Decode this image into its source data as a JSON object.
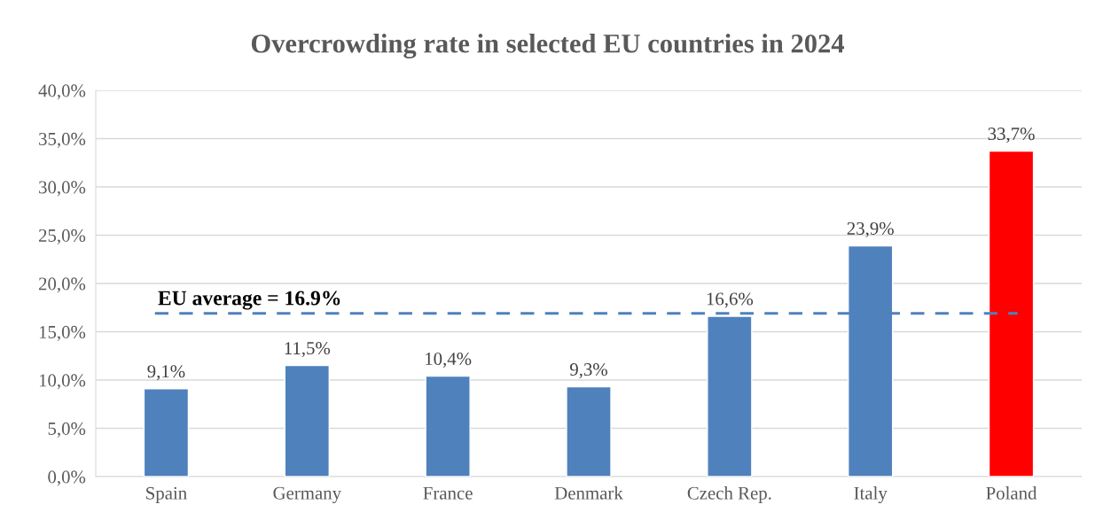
{
  "chart_data": {
    "type": "bar",
    "title": "Overcrowding rate in selected EU countries in 2024",
    "categories": [
      "Spain",
      "Germany",
      "France",
      "Denmark",
      "Czech Rep.",
      "Italy",
      "Poland"
    ],
    "values": [
      9.1,
      11.5,
      10.4,
      9.3,
      16.6,
      23.9,
      33.7
    ],
    "colors": [
      "#4f81bd",
      "#4f81bd",
      "#4f81bd",
      "#4f81bd",
      "#4f81bd",
      "#4f81bd",
      "#ff0000"
    ],
    "value_labels": [
      "9,1%",
      "11,5%",
      "10,4%",
      "9,3%",
      "16,6%",
      "23,9%",
      "33,7%"
    ],
    "ylim": [
      0,
      40
    ],
    "yticks": [
      {
        "value": 0,
        "label": "0,0%"
      },
      {
        "value": 5,
        "label": "5,0%"
      },
      {
        "value": 10,
        "label": "10,0%"
      },
      {
        "value": 15,
        "label": "15,0%"
      },
      {
        "value": 20,
        "label": "20,0%"
      },
      {
        "value": 25,
        "label": "25,0%"
      },
      {
        "value": 30,
        "label": "30,0%"
      },
      {
        "value": 35,
        "label": "35,0%"
      },
      {
        "value": 40,
        "label": "40,0%"
      }
    ],
    "grid": "y",
    "ref_lines": [
      {
        "axis": "y",
        "value": 16.9,
        "label": "EU average = 16.9%",
        "color": "#4f81bd",
        "line_style": "dashed"
      }
    ]
  }
}
